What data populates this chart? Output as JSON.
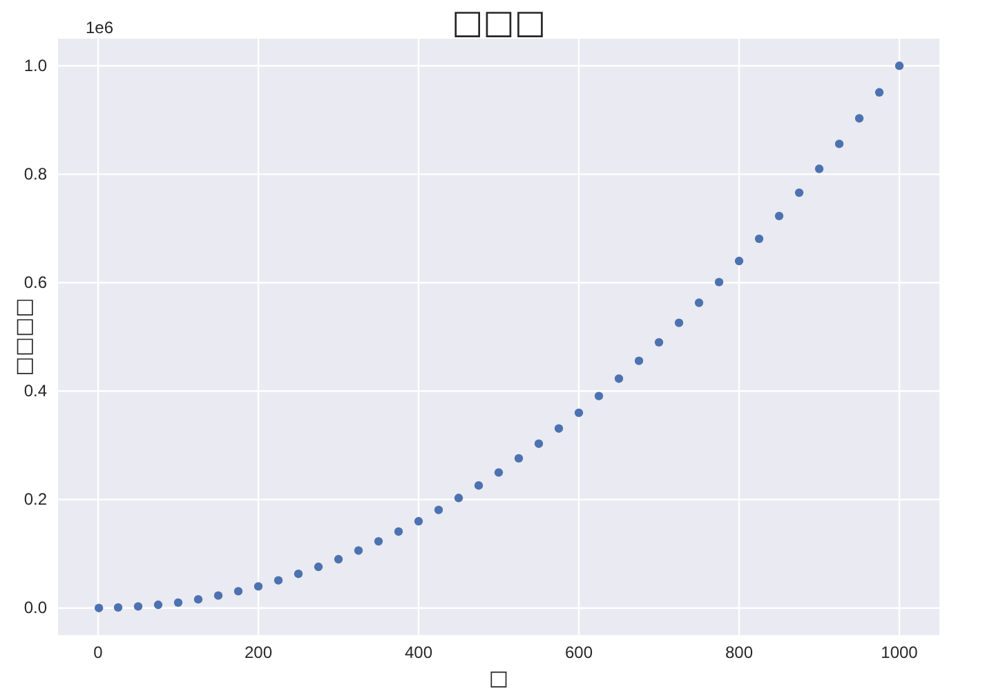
{
  "chart_data": {
    "type": "scatter",
    "title": "□□□",
    "xlabel": "□",
    "ylabel": "□□□□",
    "annotations": [
      "1e6"
    ],
    "x": [
      1,
      25,
      50,
      75,
      100,
      125,
      150,
      175,
      200,
      225,
      250,
      275,
      300,
      325,
      350,
      375,
      400,
      425,
      450,
      475,
      500,
      525,
      550,
      575,
      600,
      625,
      650,
      675,
      700,
      725,
      750,
      775,
      800,
      825,
      850,
      875,
      900,
      925,
      950,
      975,
      1000
    ],
    "series": [
      {
        "color": "#4c72b0",
        "values": [
          0,
          0.001,
          0.003,
          0.006,
          0.01,
          0.016,
          0.023,
          0.031,
          0.04,
          0.051,
          0.063,
          0.076,
          0.09,
          0.106,
          0.123,
          0.141,
          0.16,
          0.181,
          0.203,
          0.226,
          0.25,
          0.276,
          0.303,
          0.331,
          0.36,
          0.391,
          0.423,
          0.456,
          0.49,
          0.526,
          0.563,
          0.601,
          0.64,
          0.681,
          0.723,
          0.766,
          0.81,
          0.856,
          0.903,
          0.951,
          1
        ]
      }
    ],
    "xlim": [
      -50,
      1050
    ],
    "xticks": [
      0,
      200,
      400,
      600,
      800,
      1000
    ],
    "ylim": [
      -0.05,
      1.05
    ],
    "yticks": [
      {
        "value": 0,
        "label": "0.0"
      },
      0.2,
      0.4,
      0.6,
      0.8,
      {
        "value": 1,
        "label": "1.0"
      }
    ],
    "grid": true,
    "marker": "circle"
  }
}
